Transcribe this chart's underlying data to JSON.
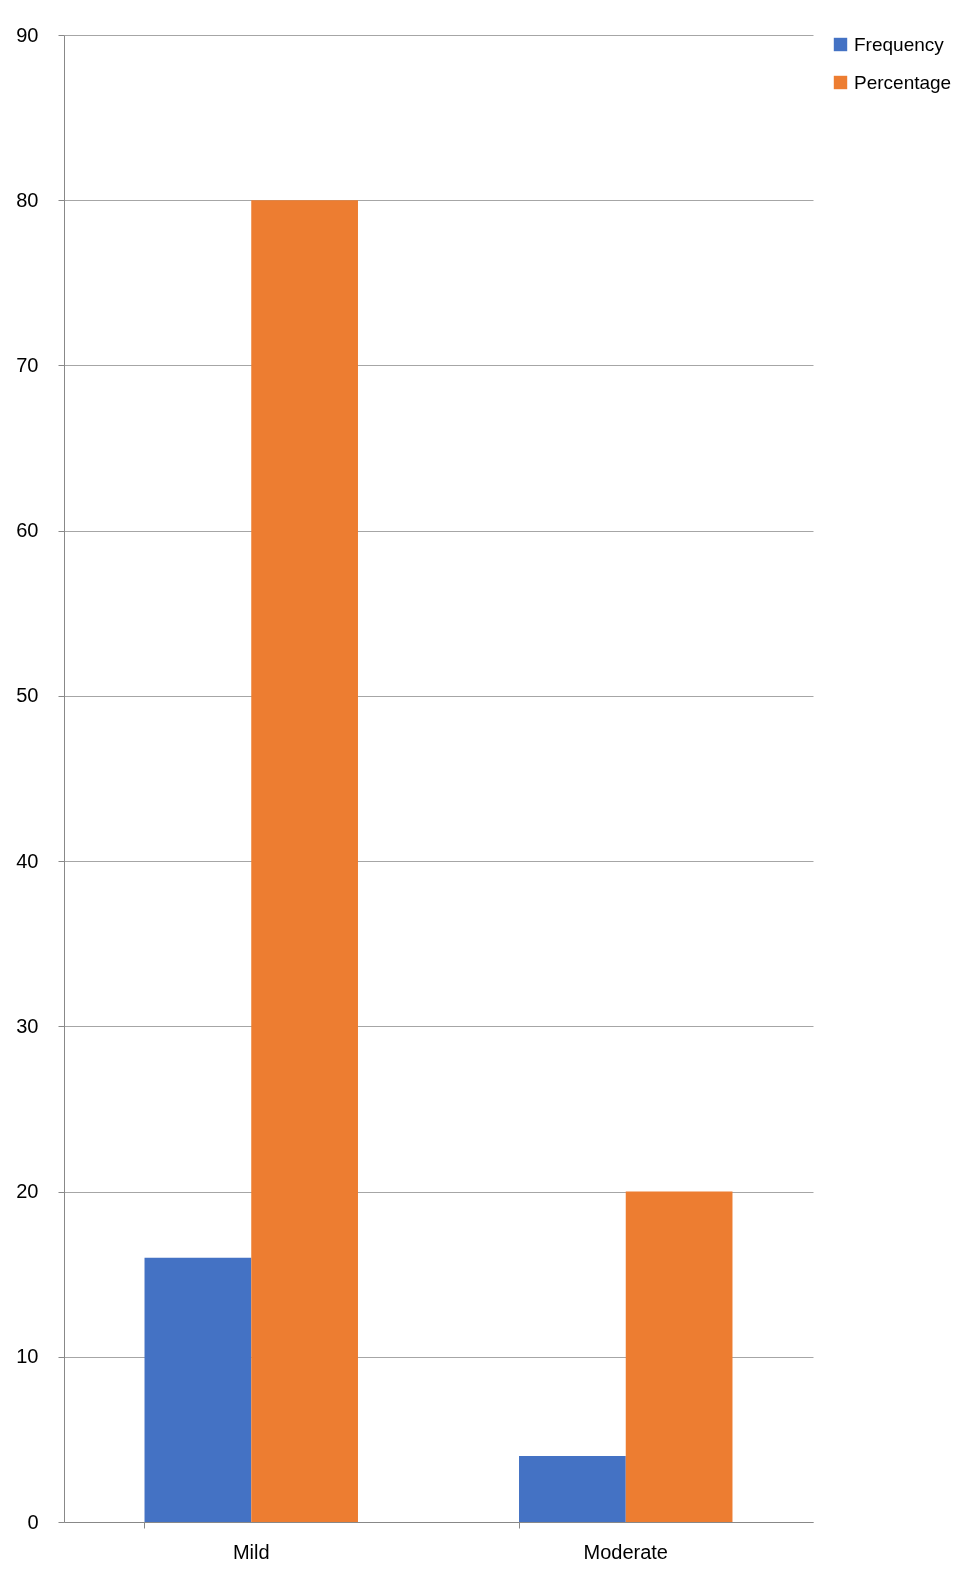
{
  "chart_data": {
    "type": "bar",
    "categories": [
      "Mild",
      "Moderate"
    ],
    "series": [
      {
        "name": "Frequency",
        "color": "#4472c4",
        "values": [
          16,
          4
        ]
      },
      {
        "name": "Percentage",
        "color": "#ed7d31",
        "values": [
          80,
          20
        ]
      }
    ],
    "ylim": [
      0,
      90
    ],
    "yticks": [
      0,
      10,
      20,
      30,
      40,
      50,
      60,
      70,
      80,
      90
    ],
    "grid": "y",
    "legend": "right"
  }
}
